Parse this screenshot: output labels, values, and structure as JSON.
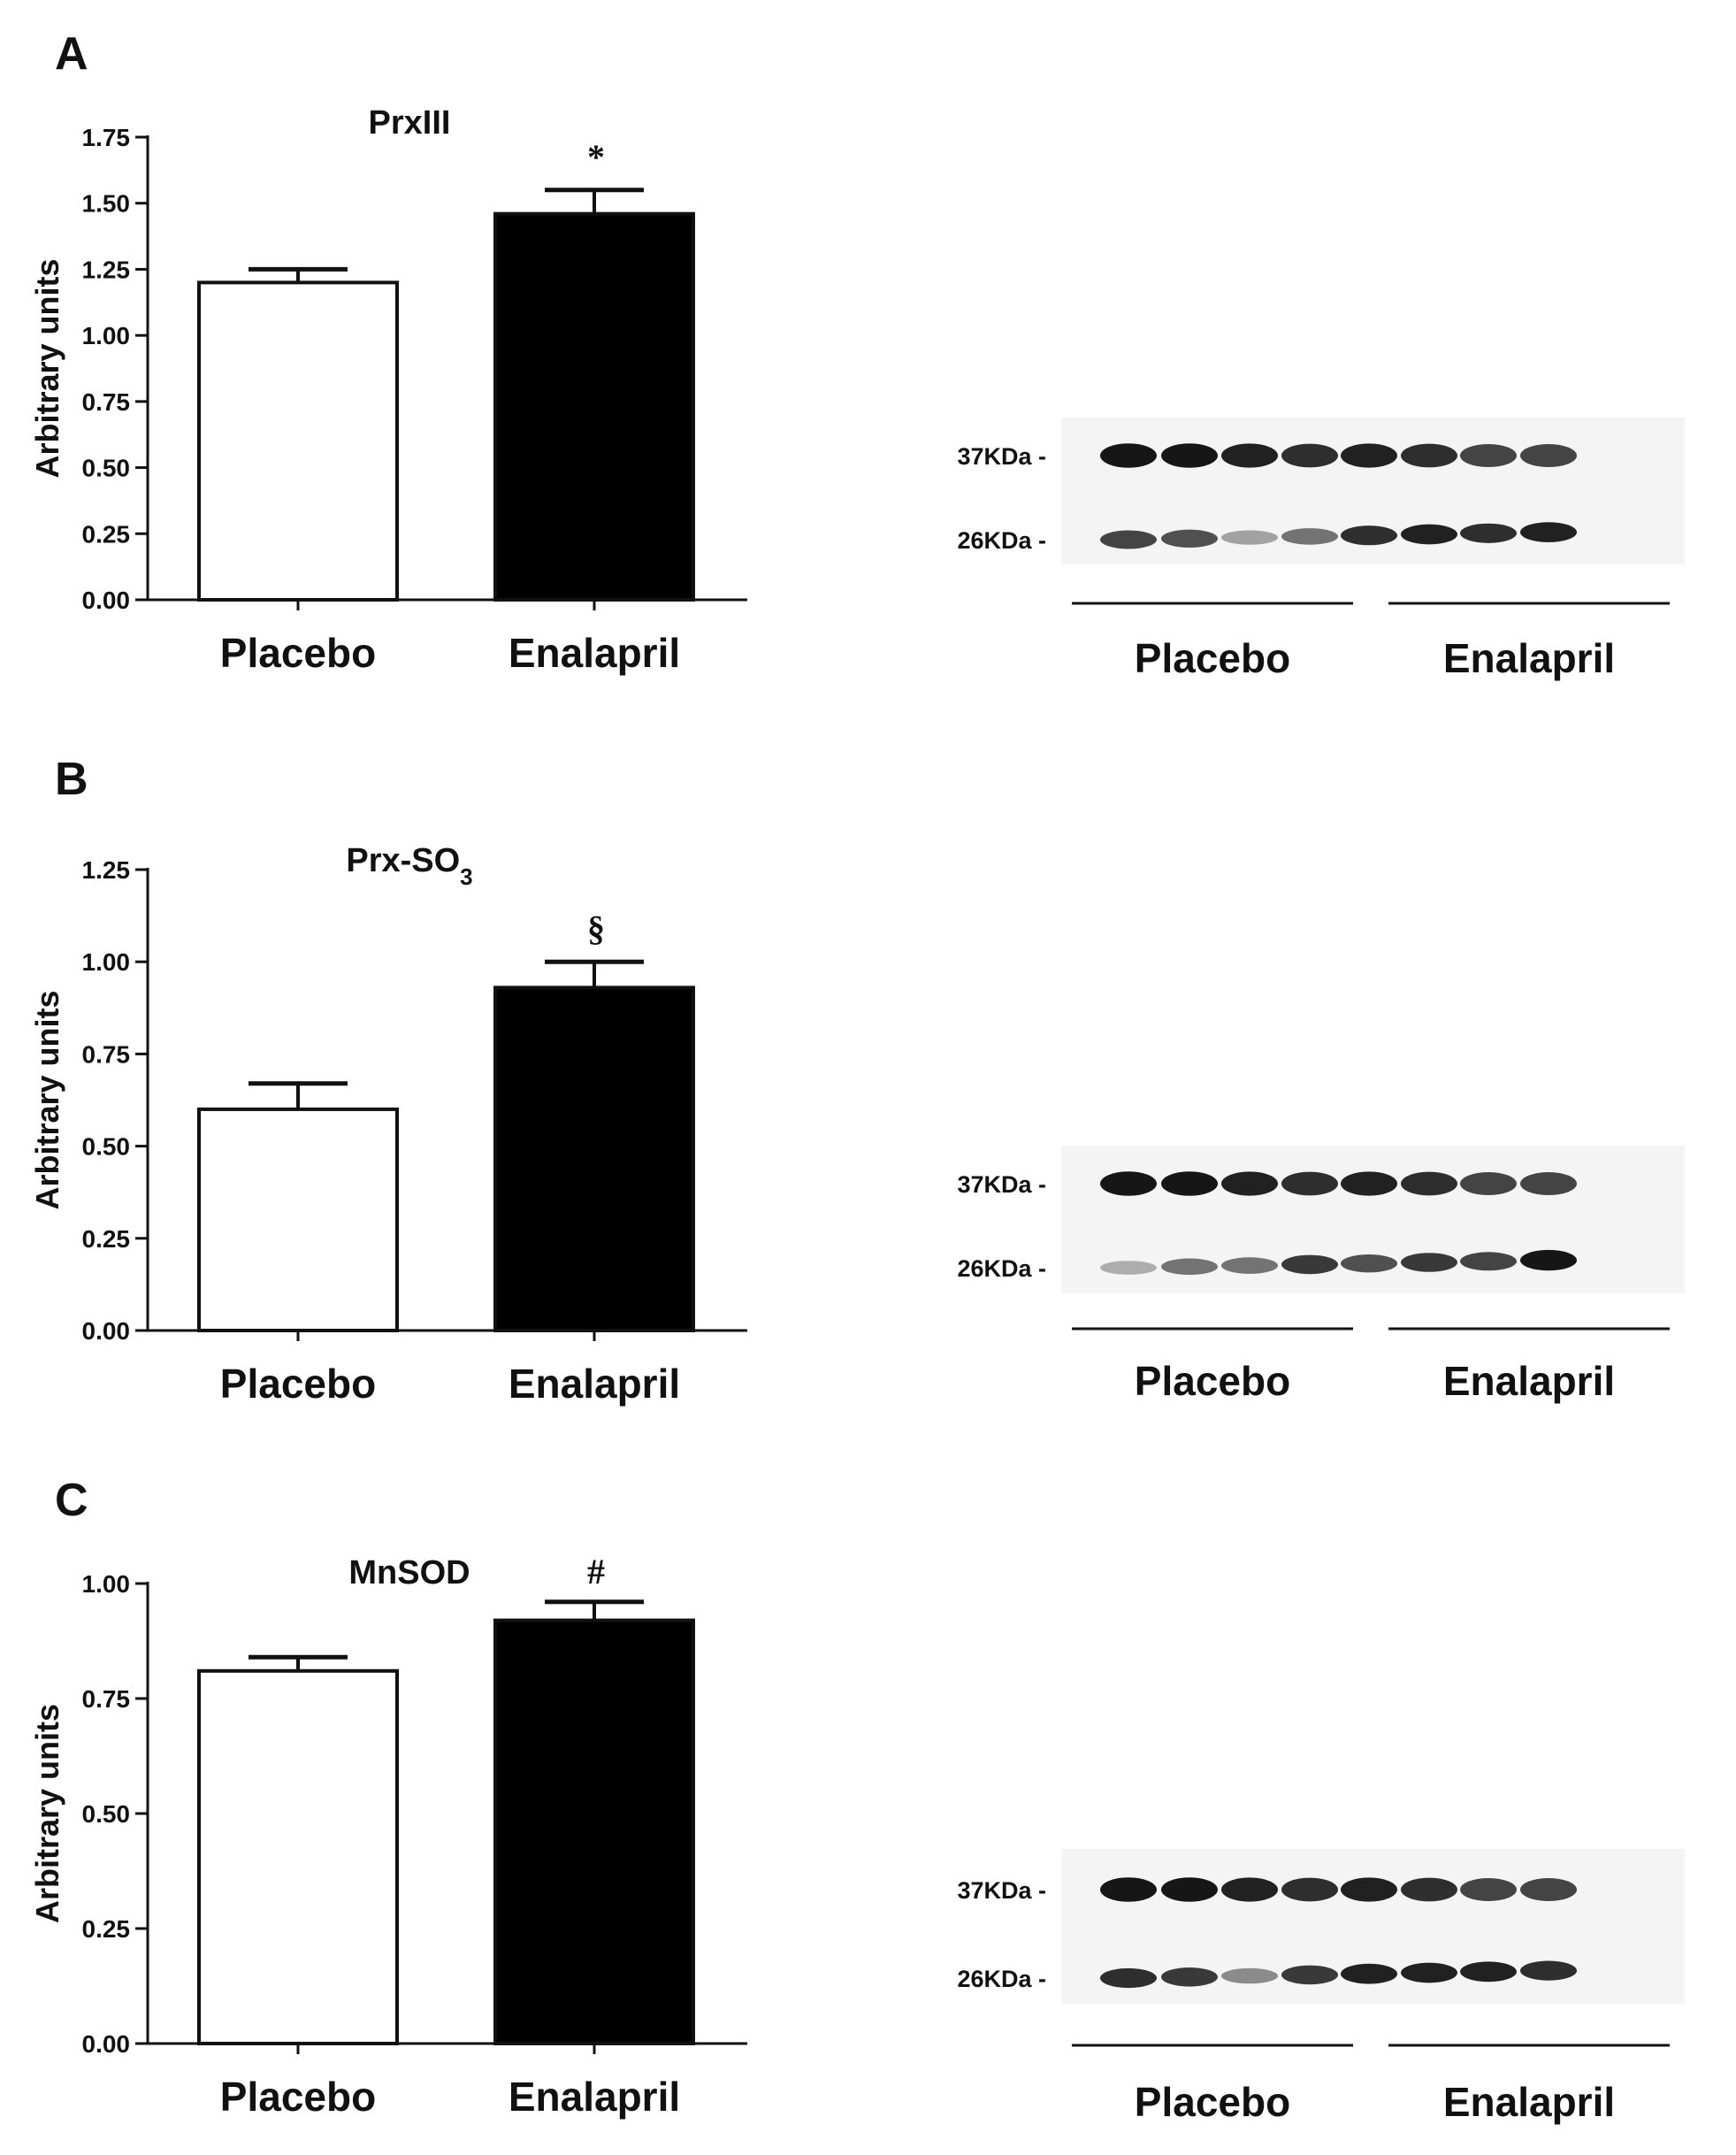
{
  "panels": [
    {
      "letter": "A",
      "chart_data": {
        "type": "bar",
        "title": "PrxIII",
        "title_sub": "",
        "ylabel": "Arbitrary units",
        "xlabel": "",
        "categories": [
          "Placebo",
          "Enalapril"
        ],
        "values": [
          1.2,
          1.46
        ],
        "errors": [
          0.05,
          0.09
        ],
        "bar_colors": [
          "#ffffff",
          "#000000"
        ],
        "significance": [
          "",
          "*"
        ],
        "ylim": [
          0,
          1.75
        ],
        "yticks": [
          0,
          0.25,
          0.5,
          0.75,
          1.0,
          1.25,
          1.5,
          1.75
        ],
        "ytick_labels": [
          "0.00",
          "0.25",
          "0.50",
          "0.75",
          "1.00",
          "1.25",
          "1.50",
          "1.75"
        ],
        "grid": false
      },
      "blot": {
        "markers": [
          "37KDa -",
          "26KDa -"
        ],
        "groups": [
          "Placebo",
          "Enalapril"
        ],
        "lanes_per_group": 4,
        "band_intensity_37": [
          0.95,
          0.95,
          0.9,
          0.85,
          0.9,
          0.85,
          0.75,
          0.75
        ],
        "band_intensity_26": [
          0.75,
          0.7,
          0.35,
          0.55,
          0.85,
          0.9,
          0.85,
          0.9
        ]
      }
    },
    {
      "letter": "B",
      "chart_data": {
        "type": "bar",
        "title": "Prx-SO",
        "title_sub": "3",
        "ylabel": "Arbitrary units",
        "xlabel": "",
        "categories": [
          "Placebo",
          "Enalapril"
        ],
        "values": [
          0.6,
          0.93
        ],
        "errors": [
          0.07,
          0.07
        ],
        "bar_colors": [
          "#ffffff",
          "#000000"
        ],
        "significance": [
          "",
          "§"
        ],
        "ylim": [
          0,
          1.25
        ],
        "yticks": [
          0,
          0.25,
          0.5,
          0.75,
          1.0,
          1.25
        ],
        "ytick_labels": [
          "0.00",
          "0.25",
          "0.50",
          "0.75",
          "1.00",
          "1.25"
        ],
        "grid": false
      },
      "blot": {
        "markers": [
          "37KDa -",
          "26KDa -"
        ],
        "groups": [
          "Placebo",
          "Enalapril"
        ],
        "lanes_per_group": 4,
        "band_intensity_37": [
          0.95,
          0.95,
          0.9,
          0.85,
          0.9,
          0.85,
          0.75,
          0.75
        ],
        "band_intensity_26": [
          0.3,
          0.55,
          0.55,
          0.8,
          0.7,
          0.8,
          0.75,
          0.95
        ]
      }
    },
    {
      "letter": "C",
      "chart_data": {
        "type": "bar",
        "title": "MnSOD",
        "title_sub": "",
        "ylabel": "Arbitrary units",
        "xlabel": "",
        "categories": [
          "Placebo",
          "Enalapril"
        ],
        "values": [
          0.81,
          0.92
        ],
        "errors": [
          0.03,
          0.04
        ],
        "bar_colors": [
          "#ffffff",
          "#000000"
        ],
        "significance": [
          "",
          "#"
        ],
        "ylim": [
          0,
          1.0
        ],
        "yticks": [
          0,
          0.25,
          0.5,
          0.75,
          1.0
        ],
        "ytick_labels": [
          "0.00",
          "0.25",
          "0.50",
          "0.75",
          "1.00"
        ],
        "grid": false
      },
      "blot": {
        "markers": [
          "37KDa -",
          "26KDa -"
        ],
        "groups": [
          "Placebo",
          "Enalapril"
        ],
        "lanes_per_group": 4,
        "band_intensity_37": [
          0.95,
          0.95,
          0.9,
          0.85,
          0.9,
          0.85,
          0.75,
          0.75
        ],
        "band_intensity_26": [
          0.85,
          0.8,
          0.45,
          0.8,
          0.9,
          0.9,
          0.9,
          0.85
        ]
      }
    }
  ]
}
